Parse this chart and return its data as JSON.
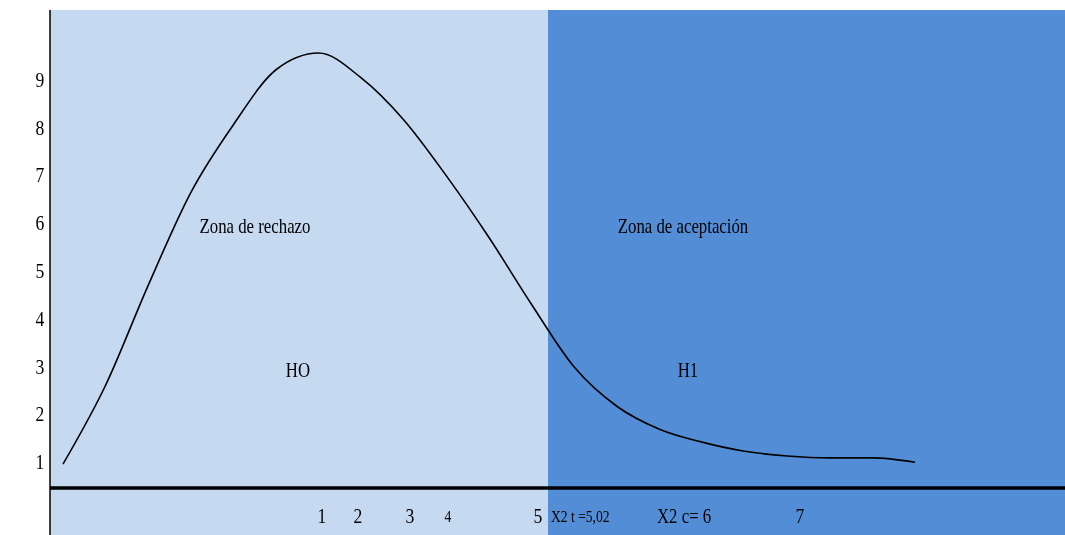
{
  "chart_data": {
    "type": "line",
    "categories": [
      null,
      null,
      null,
      null,
      null,
      null,
      null,
      null,
      null,
      null,
      null,
      null,
      null,
      null,
      null,
      null,
      null,
      null,
      null,
      null,
      null
    ],
    "series": [
      {
        "color": "#000000",
        "values": [
          1.0,
          2.65,
          4.74,
          6.68,
          8.1,
          9.25,
          9.6,
          9.08,
          8.2,
          7.03,
          5.74,
          4.34,
          3.03,
          2.21,
          1.73,
          1.46,
          1.27,
          1.17,
          1.13,
          1.13,
          1.04
        ]
      }
    ],
    "ylim": [
      0.5,
      10.5
    ],
    "yticks": [
      1,
      2,
      3,
      4,
      5,
      6,
      7,
      8,
      9
    ],
    "annotations": [
      "Zona de rechazo",
      "Zona de aceptación",
      "HO",
      "H1",
      "1",
      "2",
      "3",
      "4",
      "5",
      "X2 t =5,02",
      "X2 c= 6",
      "7"
    ],
    "grid": false,
    "marker": "none",
    "line_style": "solid"
  }
}
